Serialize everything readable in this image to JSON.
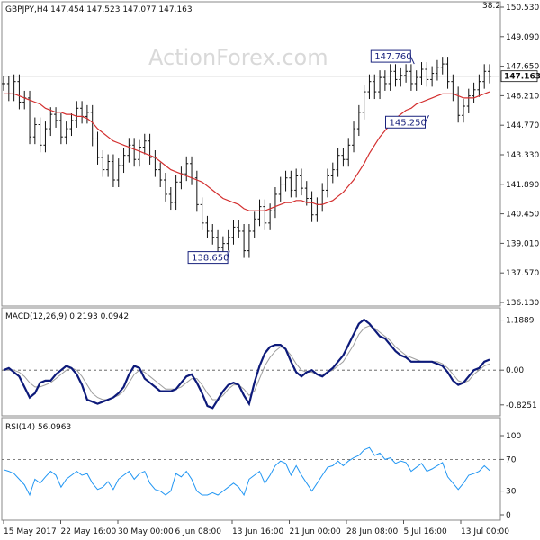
{
  "chart_data": [
    {
      "type": "line",
      "panel": "price",
      "header": "GBPJPY,H4  147.454 147.523 147.077 147.163",
      "watermark": "ActionForex.com",
      "y_ticks": [
        "150.530",
        "149.090",
        "147.650",
        "146.210",
        "144.770",
        "143.330",
        "141.890",
        "140.450",
        "139.010",
        "137.570",
        "136.130"
      ],
      "y_tick_values": [
        150.53,
        149.09,
        147.65,
        146.21,
        144.77,
        143.33,
        141.89,
        140.45,
        139.01,
        137.57,
        136.13
      ],
      "ylim": [
        136.13,
        150.53
      ],
      "x_tick_labels": [
        "15 May 2017",
        "22 May 16:00",
        "30 May 00:00",
        "6 Jun 08:00",
        "13 Jun 16:00",
        "21 Jun 00:00",
        "28 Jun 08:00",
        "5 Jul 16:00",
        "13 Jul 00:00"
      ],
      "current_price": "147.163",
      "current_price_value": 147.163,
      "top_clip_label": "38.2",
      "annotations": [
        {
          "label": "147.760",
          "x": 84.5,
          "y": 147.76
        },
        {
          "label": "145.250",
          "x": 87.5,
          "y": 145.25
        },
        {
          "label": "138.650",
          "x": 46.5,
          "y": 138.65
        }
      ],
      "series": [
        {
          "name": "price",
          "values": [
            146.8,
            146.3,
            146.9,
            145.9,
            146.1,
            144.2,
            144.8,
            143.8,
            144.6,
            145.3,
            145.0,
            144.2,
            144.6,
            145.0,
            145.6,
            145.2,
            145.4,
            144.1,
            143.2,
            142.6,
            143.0,
            142.1,
            142.8,
            143.3,
            143.8,
            143.1,
            143.7,
            144.0,
            143.2,
            142.6,
            142.1,
            141.4,
            141.0,
            142.0,
            142.4,
            142.9,
            142.2,
            140.9,
            140.0,
            139.6,
            139.3,
            138.8,
            139.0,
            139.3,
            139.8,
            139.6,
            138.65,
            139.6,
            140.2,
            140.8,
            140.0,
            140.6,
            141.4,
            141.9,
            142.2,
            141.6,
            142.3,
            141.7,
            141.2,
            140.4,
            140.9,
            141.6,
            142.3,
            142.6,
            143.3,
            143.1,
            143.8,
            144.6,
            145.4,
            146.4,
            146.9,
            146.4,
            147.1,
            146.8,
            147.4,
            147.0,
            147.2,
            147.4,
            146.8,
            147.1,
            147.5,
            147.0,
            147.3,
            147.6,
            147.76,
            146.9,
            146.3,
            145.25,
            145.7,
            146.2,
            146.5,
            146.9,
            147.4,
            147.163
          ]
        },
        {
          "name": "moving-average",
          "values": [
            146.3,
            146.3,
            146.3,
            146.2,
            146.1,
            146.0,
            145.9,
            145.8,
            145.6,
            145.5,
            145.4,
            145.4,
            145.3,
            145.3,
            145.2,
            145.2,
            145.1,
            144.9,
            144.6,
            144.4,
            144.2,
            144.0,
            143.9,
            143.8,
            143.7,
            143.6,
            143.5,
            143.4,
            143.3,
            143.2,
            143.0,
            142.8,
            142.6,
            142.5,
            142.4,
            142.3,
            142.2,
            142.1,
            142.0,
            141.8,
            141.6,
            141.4,
            141.2,
            141.1,
            141.0,
            140.9,
            140.7,
            140.6,
            140.6,
            140.6,
            140.6,
            140.7,
            140.8,
            140.9,
            141.0,
            141.0,
            141.1,
            141.1,
            141.0,
            141.0,
            140.9,
            140.9,
            141.0,
            141.1,
            141.3,
            141.5,
            141.8,
            142.1,
            142.5,
            142.9,
            143.4,
            143.8,
            144.2,
            144.5,
            144.8,
            145.1,
            145.3,
            145.5,
            145.6,
            145.8,
            145.9,
            146.0,
            146.1,
            146.2,
            146.3,
            146.3,
            146.3,
            146.2,
            146.1,
            146.1,
            146.1,
            146.2,
            146.3,
            146.4
          ]
        }
      ]
    },
    {
      "type": "line",
      "panel": "macd",
      "header": "MACD(12,26,9) 0.2193 0.0942",
      "y_ticks": [
        "1.1889",
        "0.00",
        "-0.8251"
      ],
      "y_tick_values": [
        1.1889,
        0.0,
        -0.8251
      ],
      "ylim": [
        -1.0,
        1.35
      ],
      "zero_line": 0.0,
      "series": [
        {
          "name": "macd",
          "values": [
            0.0,
            0.05,
            -0.05,
            -0.15,
            -0.4,
            -0.65,
            -0.55,
            -0.3,
            -0.25,
            -0.25,
            -0.1,
            0.0,
            0.1,
            0.05,
            -0.1,
            -0.35,
            -0.7,
            -0.75,
            -0.8,
            -0.75,
            -0.7,
            -0.65,
            -0.55,
            -0.4,
            -0.1,
            0.1,
            0.05,
            -0.2,
            -0.3,
            -0.4,
            -0.5,
            -0.5,
            -0.5,
            -0.45,
            -0.3,
            -0.15,
            -0.1,
            -0.3,
            -0.55,
            -0.85,
            -0.9,
            -0.7,
            -0.5,
            -0.35,
            -0.3,
            -0.35,
            -0.6,
            -0.8,
            -0.3,
            0.1,
            0.4,
            0.55,
            0.6,
            0.6,
            0.5,
            0.2,
            -0.05,
            -0.15,
            -0.05,
            0.0,
            -0.1,
            -0.15,
            -0.05,
            0.05,
            0.2,
            0.35,
            0.6,
            0.85,
            1.1,
            1.2,
            1.1,
            0.95,
            0.8,
            0.75,
            0.6,
            0.45,
            0.35,
            0.3,
            0.2,
            0.2,
            0.2,
            0.2,
            0.2,
            0.15,
            0.1,
            -0.05,
            -0.25,
            -0.35,
            -0.3,
            -0.15,
            0.0,
            0.05,
            0.2,
            0.25
          ]
        },
        {
          "name": "signal",
          "values": [
            0.0,
            0.0,
            0.0,
            -0.05,
            -0.15,
            -0.3,
            -0.4,
            -0.4,
            -0.35,
            -0.3,
            -0.2,
            -0.1,
            0.0,
            0.05,
            0.0,
            -0.15,
            -0.35,
            -0.55,
            -0.65,
            -0.7,
            -0.7,
            -0.65,
            -0.6,
            -0.5,
            -0.3,
            -0.1,
            0.0,
            -0.05,
            -0.15,
            -0.25,
            -0.35,
            -0.45,
            -0.45,
            -0.45,
            -0.4,
            -0.3,
            -0.2,
            -0.2,
            -0.35,
            -0.55,
            -0.7,
            -0.7,
            -0.6,
            -0.45,
            -0.35,
            -0.35,
            -0.45,
            -0.6,
            -0.5,
            -0.2,
            0.1,
            0.3,
            0.45,
            0.55,
            0.5,
            0.35,
            0.15,
            0.0,
            -0.05,
            -0.05,
            -0.1,
            -0.1,
            -0.05,
            0.0,
            0.1,
            0.2,
            0.4,
            0.6,
            0.85,
            1.0,
            1.05,
            1.0,
            0.9,
            0.8,
            0.7,
            0.55,
            0.45,
            0.35,
            0.3,
            0.25,
            0.2,
            0.2,
            0.2,
            0.2,
            0.15,
            0.05,
            -0.1,
            -0.25,
            -0.3,
            -0.25,
            -0.1,
            0.0,
            0.1,
            0.15
          ]
        }
      ]
    },
    {
      "type": "line",
      "panel": "rsi",
      "header": "RSI(14) 56.0963",
      "y_ticks": [
        "100",
        "70",
        "30",
        "0"
      ],
      "y_tick_values": [
        100,
        70,
        30,
        0
      ],
      "ylim": [
        0,
        100
      ],
      "ref_lines": [
        70,
        30
      ],
      "series": [
        {
          "name": "rsi",
          "values": [
            57,
            55,
            52,
            45,
            38,
            25,
            45,
            40,
            48,
            55,
            50,
            35,
            45,
            50,
            55,
            50,
            52,
            40,
            32,
            35,
            42,
            32,
            45,
            50,
            55,
            45,
            52,
            55,
            40,
            32,
            30,
            25,
            30,
            52,
            48,
            55,
            45,
            30,
            25,
            25,
            28,
            25,
            30,
            35,
            40,
            35,
            25,
            45,
            50,
            55,
            40,
            50,
            62,
            68,
            65,
            50,
            62,
            50,
            40,
            30,
            40,
            50,
            60,
            62,
            68,
            62,
            68,
            72,
            75,
            82,
            85,
            75,
            78,
            70,
            72,
            65,
            68,
            66,
            55,
            60,
            65,
            55,
            58,
            62,
            66,
            48,
            40,
            32,
            40,
            50,
            52,
            55,
            62,
            56
          ]
        }
      ]
    }
  ]
}
